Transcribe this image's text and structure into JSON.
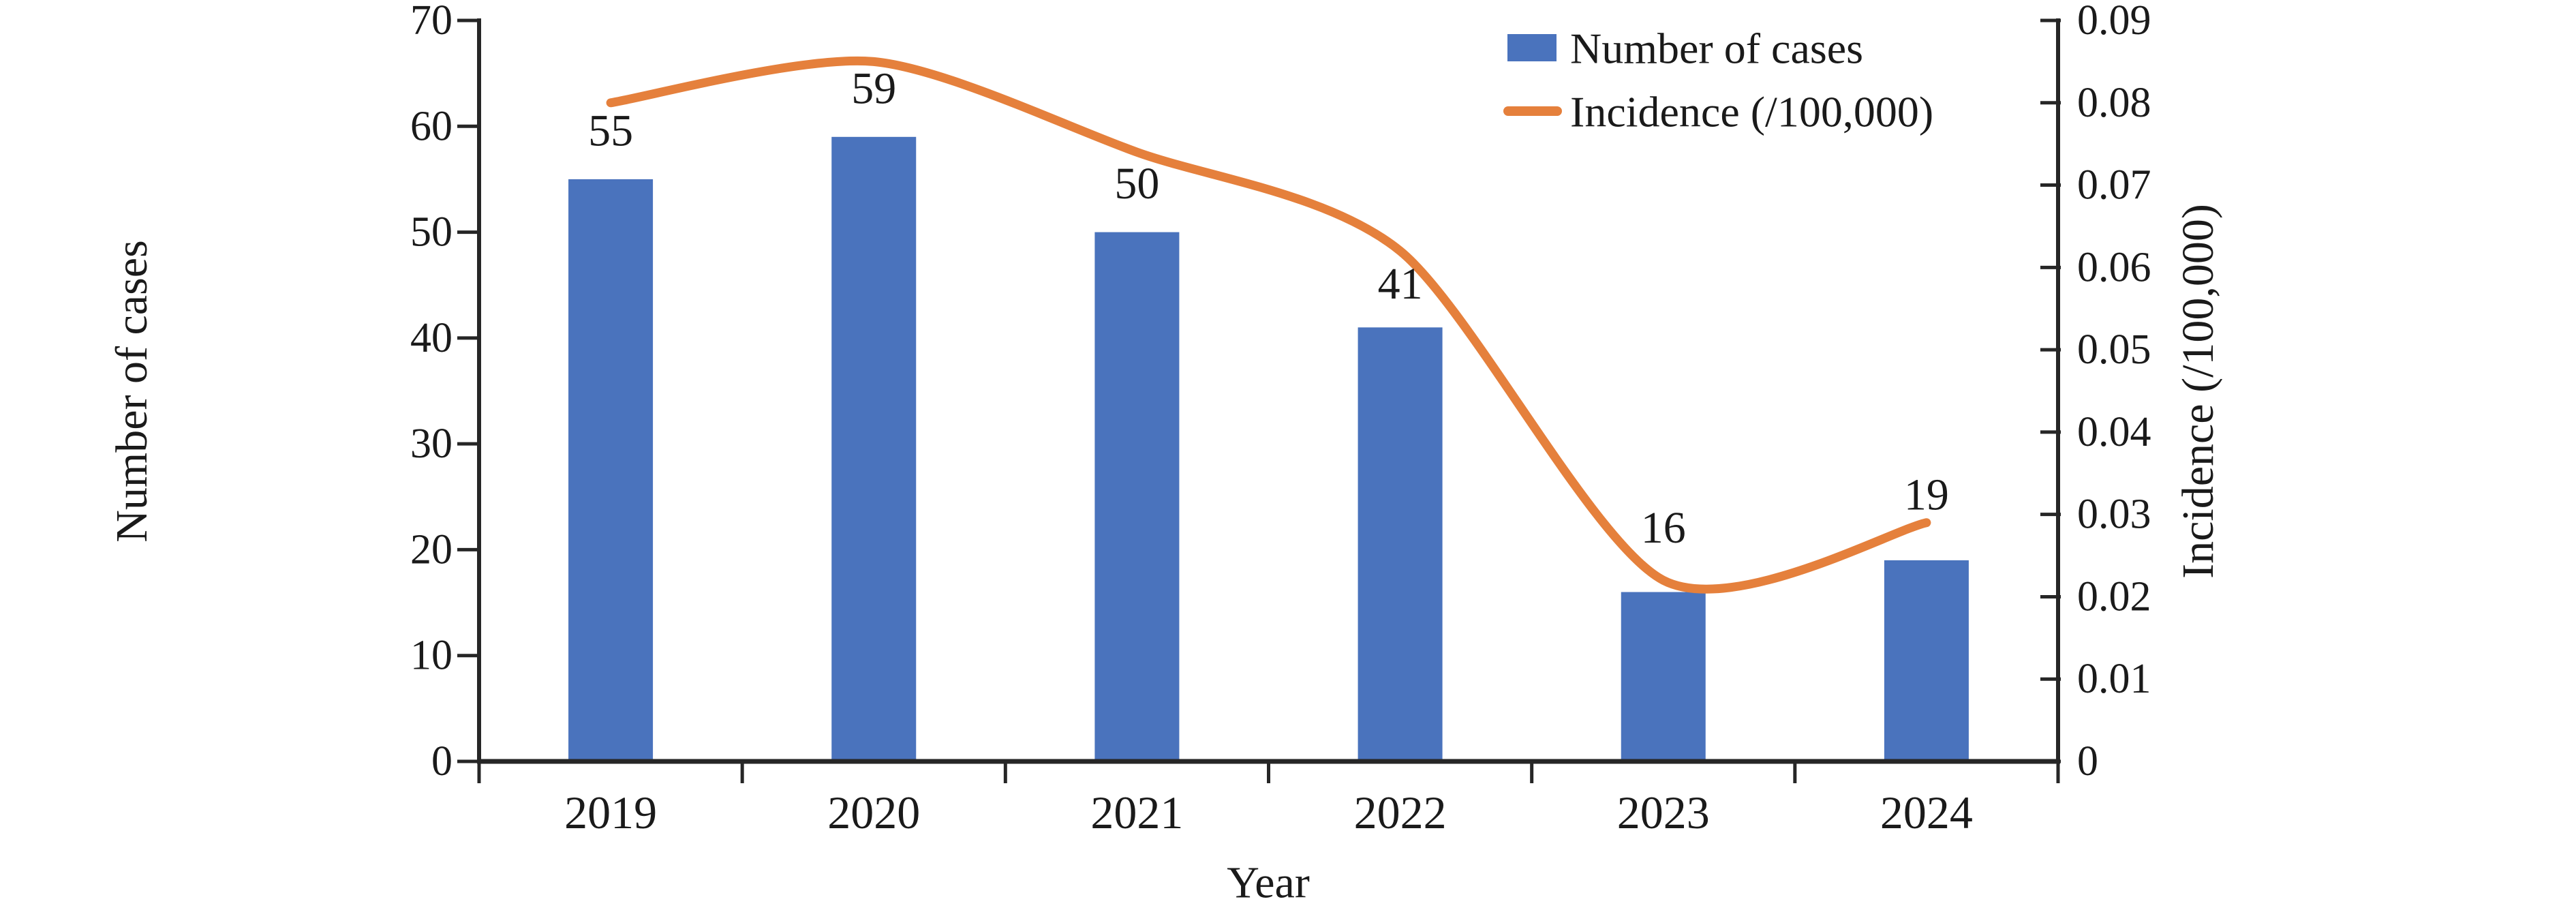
{
  "chart_data": {
    "type": "combo-bar-line",
    "categories": [
      "2019",
      "2020",
      "2021",
      "2022",
      "2023",
      "2024"
    ],
    "series": [
      {
        "name": "Number of cases",
        "type": "bar",
        "axis": "left",
        "values": [
          55,
          59,
          50,
          41,
          16,
          19
        ],
        "data_labels": [
          "55",
          "59",
          "50",
          "41",
          "16",
          "19"
        ],
        "color": "#4a73bd"
      },
      {
        "name": "Incidence (/100,000)",
        "type": "line",
        "axis": "right",
        "smooth": true,
        "values": [
          0.08,
          0.085,
          0.074,
          0.062,
          0.022,
          0.029
        ],
        "color": "#e5803c"
      }
    ],
    "xlabel": "Year",
    "ylabel_left": "Number of cases",
    "ylabel_right": "Incidence (/100,000)",
    "ylim_left": [
      0,
      70
    ],
    "ytick_step_left": 10,
    "yticks_left": [
      "0",
      "10",
      "20",
      "30",
      "40",
      "50",
      "60",
      "70"
    ],
    "ylim_right": [
      0,
      0.09
    ],
    "ytick_step_right": 0.01,
    "yticks_right": [
      "0",
      "0.01",
      "0.02",
      "0.03",
      "0.04",
      "0.05",
      "0.06",
      "0.07",
      "0.08",
      "0.09"
    ],
    "grid": false,
    "legend_position": "top-right",
    "axis_color": "#262626",
    "text_color": "#1a1a1a",
    "background_color": "#ffffff"
  },
  "legend": {
    "items": [
      {
        "label": "Number of cases",
        "swatch": "bar"
      },
      {
        "label": "Incidence (/100,000)",
        "swatch": "line"
      }
    ]
  }
}
